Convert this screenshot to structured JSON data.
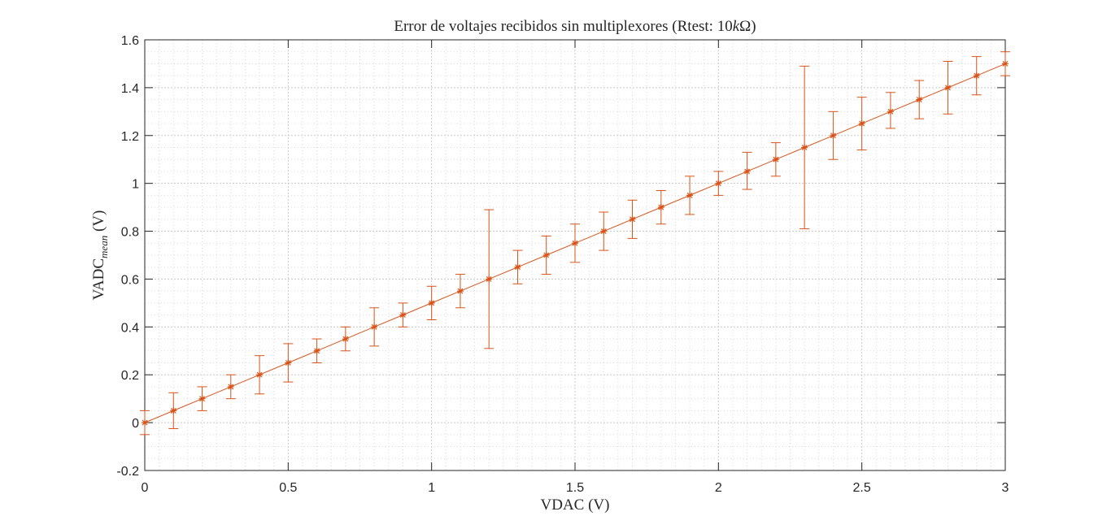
{
  "chart_data": {
    "type": "line",
    "title": "Error de voltajes recibidos sin multiplexores (Rtest: 10kΩ)",
    "title_parts": {
      "pre": "Error de voltajes recibidos sin multiplexores (Rtest: 10",
      "k": "k",
      "post": "Ω)"
    },
    "xlabel": "VDAC (V)",
    "ylabel": {
      "main": "VADC",
      "sub": "mean",
      "unit": " (V)"
    },
    "xlim": [
      0,
      3
    ],
    "ylim": [
      -0.2,
      1.6
    ],
    "xticks": [
      0,
      0.5,
      1,
      1.5,
      2,
      2.5,
      3
    ],
    "xtick_labels": [
      "0",
      "0.5",
      "1",
      "1.5",
      "2",
      "2.5",
      "3"
    ],
    "yticks": [
      -0.2,
      0,
      0.2,
      0.4,
      0.6,
      0.8,
      1,
      1.2,
      1.4,
      1.6
    ],
    "ytick_labels": [
      "-0.2",
      "0",
      "0.2",
      "0.4",
      "0.6",
      "0.8",
      "1",
      "1.2",
      "1.4",
      "1.6"
    ],
    "grid": true,
    "minor_grid": true,
    "marker": "asterisk",
    "series": [
      {
        "color": "#D95319",
        "x": [
          0,
          0.1,
          0.2,
          0.3,
          0.4,
          0.5,
          0.6,
          0.7,
          0.8,
          0.9,
          1.0,
          1.1,
          1.2,
          1.3,
          1.4,
          1.5,
          1.6,
          1.7,
          1.8,
          1.9,
          2.0,
          2.1,
          2.2,
          2.3,
          2.4,
          2.5,
          2.6,
          2.7,
          2.8,
          2.9,
          3.0
        ],
        "y": [
          0,
          0.05,
          0.1,
          0.15,
          0.2,
          0.25,
          0.3,
          0.35,
          0.4,
          0.45,
          0.5,
          0.55,
          0.6,
          0.65,
          0.7,
          0.75,
          0.8,
          0.85,
          0.9,
          0.95,
          1.0,
          1.05,
          1.1,
          1.15,
          1.2,
          1.25,
          1.3,
          1.35,
          1.4,
          1.45,
          1.5
        ],
        "err_low": [
          -0.05,
          -0.025,
          0.05,
          0.1,
          0.12,
          0.17,
          0.25,
          0.3,
          0.32,
          0.4,
          0.43,
          0.48,
          0.31,
          0.58,
          0.62,
          0.67,
          0.72,
          0.77,
          0.83,
          0.87,
          0.95,
          0.975,
          1.03,
          0.81,
          1.1,
          1.14,
          1.23,
          1.27,
          1.29,
          1.37,
          1.45
        ],
        "err_high": [
          0.05,
          0.125,
          0.15,
          0.2,
          0.28,
          0.33,
          0.35,
          0.4,
          0.48,
          0.5,
          0.57,
          0.62,
          0.89,
          0.72,
          0.78,
          0.83,
          0.88,
          0.93,
          0.97,
          1.03,
          1.05,
          1.13,
          1.17,
          1.49,
          1.3,
          1.36,
          1.38,
          1.43,
          1.51,
          1.53,
          1.55
        ]
      }
    ]
  }
}
